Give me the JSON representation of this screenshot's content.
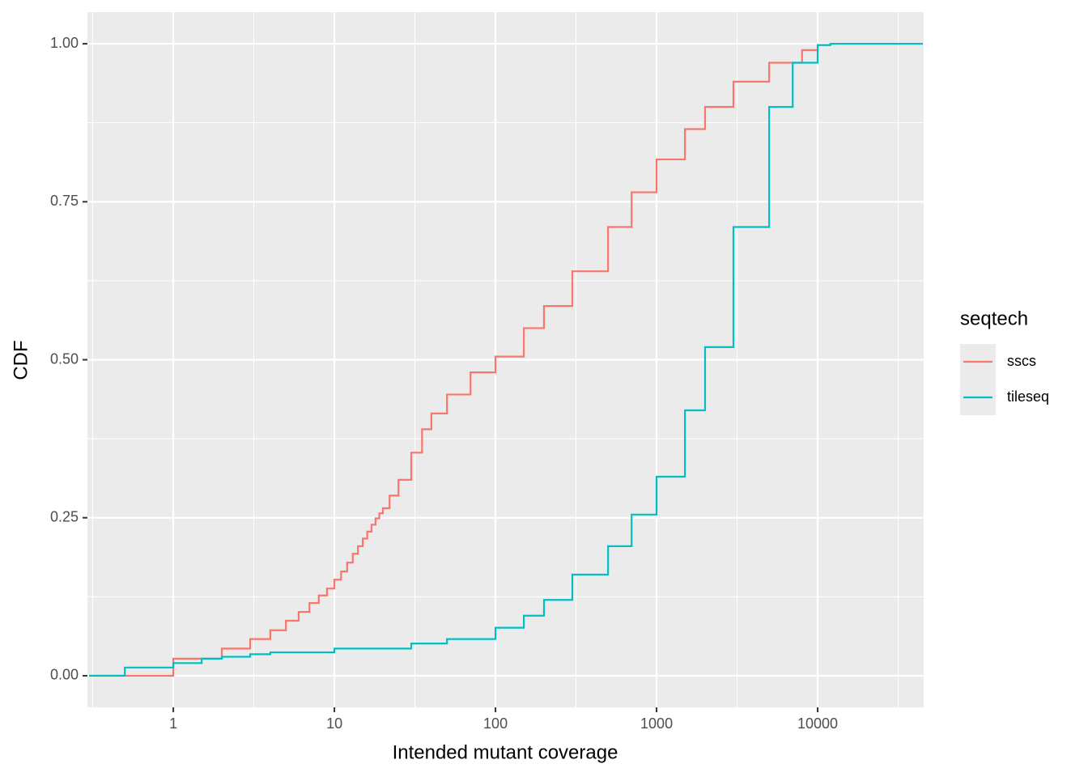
{
  "chart_data": {
    "type": "step",
    "x_label": "Intended mutant coverage",
    "y_label": "CDF",
    "xscale": "log",
    "xlim": [
      0.293,
      45500
    ],
    "xticks": [
      1,
      10,
      100,
      1000,
      10000
    ],
    "xminorticks": [
      0.316,
      3.16,
      31.6,
      316,
      3162,
      31623
    ],
    "ylim": [
      -0.05,
      1.05
    ],
    "yticks": [
      {
        "value": 0,
        "label": "0.00"
      },
      {
        "value": 0.25,
        "label": "0.25"
      },
      {
        "value": 0.5,
        "label": "0.50"
      },
      {
        "value": 0.75,
        "label": "0.75"
      },
      {
        "value": 1,
        "label": "1.00"
      }
    ],
    "yminorticks": [
      0.125,
      0.375,
      0.625,
      0.875
    ],
    "grid": true,
    "legend_title": "seqtech",
    "legend_position": "right",
    "series": [
      {
        "name": "sscs",
        "color": "#F8766D",
        "x": [
          0.3,
          1,
          2,
          3,
          4,
          5,
          6,
          7,
          8,
          9,
          10,
          11,
          12,
          13,
          14,
          15,
          16,
          17,
          18,
          19,
          20,
          22,
          25,
          30,
          35,
          40,
          50,
          70,
          100,
          150,
          200,
          300,
          500,
          700,
          1000,
          1500,
          2000,
          3000,
          5000,
          8000,
          10000,
          12000,
          45000
        ],
        "values": [
          0,
          0.027,
          0.043,
          0.058,
          0.072,
          0.087,
          0.101,
          0.115,
          0.127,
          0.138,
          0.152,
          0.165,
          0.179,
          0.193,
          0.205,
          0.217,
          0.228,
          0.239,
          0.249,
          0.257,
          0.265,
          0.285,
          0.31,
          0.353,
          0.39,
          0.415,
          0.445,
          0.48,
          0.505,
          0.55,
          0.585,
          0.64,
          0.71,
          0.765,
          0.817,
          0.865,
          0.9,
          0.94,
          0.97,
          0.99,
          0.998,
          1,
          1
        ]
      },
      {
        "name": "tileseq",
        "color": "#00BFC4",
        "x": [
          0.3,
          0.5,
          1,
          1.5,
          2,
          3,
          4,
          10,
          30,
          50,
          100,
          150,
          200,
          300,
          500,
          700,
          1000,
          1500,
          2000,
          3000,
          5000,
          7000,
          10000,
          12000,
          45000
        ],
        "values": [
          0,
          0.013,
          0.02,
          0.027,
          0.03,
          0.034,
          0.037,
          0.043,
          0.051,
          0.058,
          0.076,
          0.095,
          0.12,
          0.16,
          0.205,
          0.255,
          0.315,
          0.42,
          0.52,
          0.71,
          0.9,
          0.97,
          0.998,
          1,
          1
        ]
      }
    ]
  }
}
